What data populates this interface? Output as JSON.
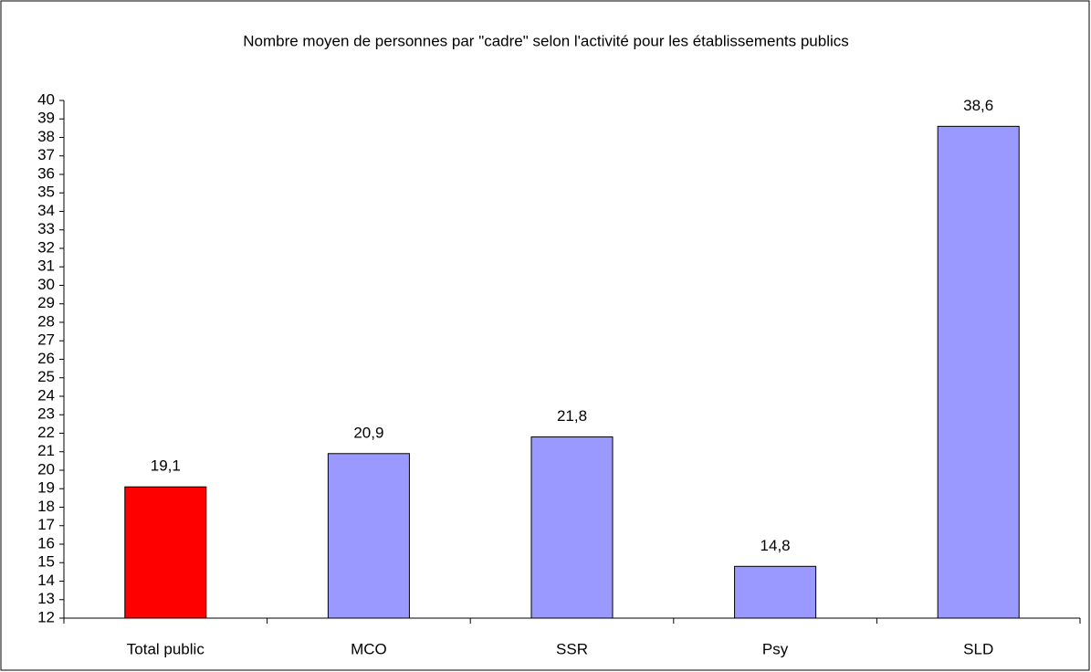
{
  "chart_data": {
    "type": "bar",
    "title": "Nombre moyen de personnes par \"cadre\" selon l'activité pour les établissements publics",
    "categories": [
      "Total public",
      "MCO",
      "SSR",
      "Psy",
      "SLD"
    ],
    "values": [
      19.1,
      20.9,
      21.8,
      14.8,
      38.6
    ],
    "value_labels": [
      "19,1",
      "20,9",
      "21,8",
      "14,8",
      "38,6"
    ],
    "colors": [
      "#ff0000",
      "#9999ff",
      "#9999ff",
      "#9999ff",
      "#9999ff"
    ],
    "ylim": [
      12,
      40
    ],
    "yticks": [
      12,
      13,
      14,
      15,
      16,
      17,
      18,
      19,
      20,
      21,
      22,
      23,
      24,
      25,
      26,
      27,
      28,
      29,
      30,
      31,
      32,
      33,
      34,
      35,
      36,
      37,
      38,
      39,
      40
    ],
    "grid": false
  }
}
